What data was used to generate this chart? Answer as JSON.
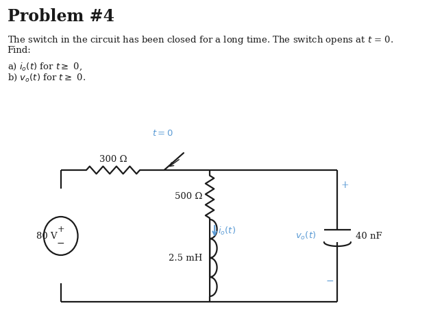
{
  "title": "Problem #4",
  "bg_color": "#ffffff",
  "text_color": "#1a1a1a",
  "circuit_color": "#1a1a1a",
  "highlight_color": "#5b9bd5",
  "resistor1_label": "300 Ω",
  "resistor2_label": "500 Ω",
  "inductor_label": "2.5 mH",
  "capacitor_label": "40 nF",
  "source_label": "80 V",
  "cL": 100,
  "cR": 555,
  "cT": 248,
  "cB": 440,
  "midX": 345,
  "src_r": 28,
  "cap_plate_half": 22
}
